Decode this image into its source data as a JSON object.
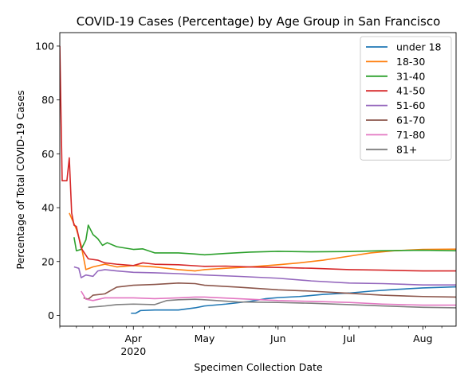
{
  "chart_data": {
    "type": "line",
    "title": "COVID-19 Cases (Percentage) by Age Group in San Francisco",
    "xlabel": "Specimen Collection Date",
    "ylabel": "Percentage of Total COVID-19 Cases",
    "x_range": [
      "2020-03-01",
      "2020-08-15"
    ],
    "ylim": [
      -4,
      105
    ],
    "y_ticks": [
      0,
      20,
      40,
      60,
      80,
      100
    ],
    "x_ticks": [
      {
        "date": "2020-04-01",
        "label": "Apr",
        "sublabel": "2020"
      },
      {
        "date": "2020-05-01",
        "label": "May",
        "sublabel": ""
      },
      {
        "date": "2020-06-01",
        "label": "Jun",
        "sublabel": ""
      },
      {
        "date": "2020-07-01",
        "label": "Jul",
        "sublabel": ""
      },
      {
        "date": "2020-08-01",
        "label": "Aug",
        "sublabel": ""
      }
    ],
    "grid": false,
    "legend_position": "top-right",
    "series": [
      {
        "name": "under 18",
        "color": "#1f77b4",
        "points": [
          [
            "2020-03-31",
            0.8
          ],
          [
            "2020-04-02",
            0.8
          ],
          [
            "2020-04-04",
            1.8
          ],
          [
            "2020-04-10",
            2.0
          ],
          [
            "2020-04-20",
            2.0
          ],
          [
            "2020-04-27",
            2.8
          ],
          [
            "2020-05-01",
            3.5
          ],
          [
            "2020-05-10",
            4.2
          ],
          [
            "2020-05-20",
            5.2
          ],
          [
            "2020-05-27",
            6.2
          ],
          [
            "2020-06-01",
            6.6
          ],
          [
            "2020-06-10",
            7.0
          ],
          [
            "2020-06-20",
            7.8
          ],
          [
            "2020-07-01",
            8.3
          ],
          [
            "2020-07-10",
            9.0
          ],
          [
            "2020-07-20",
            9.6
          ],
          [
            "2020-08-01",
            10.2
          ],
          [
            "2020-08-15",
            10.6
          ]
        ]
      },
      {
        "name": "18-30",
        "color": "#ff7f0e",
        "points": [
          [
            "2020-03-05",
            38.0
          ],
          [
            "2020-03-08",
            32.0
          ],
          [
            "2020-03-10",
            26.0
          ],
          [
            "2020-03-12",
            17.0
          ],
          [
            "2020-03-15",
            18.0
          ],
          [
            "2020-03-20",
            19.0
          ],
          [
            "2020-03-25",
            18.0
          ],
          [
            "2020-04-01",
            18.5
          ],
          [
            "2020-04-10",
            18.0
          ],
          [
            "2020-04-20",
            17.0
          ],
          [
            "2020-04-27",
            16.5
          ],
          [
            "2020-05-01",
            17.0
          ],
          [
            "2020-05-10",
            17.5
          ],
          [
            "2020-05-20",
            18.0
          ],
          [
            "2020-06-01",
            18.8
          ],
          [
            "2020-06-10",
            19.5
          ],
          [
            "2020-06-20",
            20.5
          ],
          [
            "2020-07-01",
            22.0
          ],
          [
            "2020-07-10",
            23.2
          ],
          [
            "2020-07-20",
            24.0
          ],
          [
            "2020-08-01",
            24.5
          ],
          [
            "2020-08-15",
            24.6
          ]
        ]
      },
      {
        "name": "31-40",
        "color": "#2ca02c",
        "points": [
          [
            "2020-03-07",
            29.0
          ],
          [
            "2020-03-08",
            24.0
          ],
          [
            "2020-03-10",
            24.5
          ],
          [
            "2020-03-12",
            28.0
          ],
          [
            "2020-03-13",
            33.5
          ],
          [
            "2020-03-15",
            30.0
          ],
          [
            "2020-03-17",
            28.5
          ],
          [
            "2020-03-19",
            26.0
          ],
          [
            "2020-03-21",
            27.0
          ],
          [
            "2020-03-25",
            25.5
          ],
          [
            "2020-04-01",
            24.5
          ],
          [
            "2020-04-05",
            24.7
          ],
          [
            "2020-04-10",
            23.2
          ],
          [
            "2020-04-20",
            23.2
          ],
          [
            "2020-04-27",
            22.8
          ],
          [
            "2020-05-01",
            22.5
          ],
          [
            "2020-05-10",
            23.0
          ],
          [
            "2020-05-20",
            23.5
          ],
          [
            "2020-06-01",
            23.8
          ],
          [
            "2020-06-15",
            23.6
          ],
          [
            "2020-07-01",
            23.7
          ],
          [
            "2020-07-15",
            24.0
          ],
          [
            "2020-08-01",
            24.2
          ],
          [
            "2020-08-15",
            24.0
          ]
        ]
      },
      {
        "name": "41-50",
        "color": "#d62728",
        "points": [
          [
            "2020-03-01",
            100.0
          ],
          [
            "2020-03-02",
            50.0
          ],
          [
            "2020-03-04",
            50.0
          ],
          [
            "2020-03-05",
            58.5
          ],
          [
            "2020-03-06",
            38.0
          ],
          [
            "2020-03-07",
            33.5
          ],
          [
            "2020-03-08",
            33.0
          ],
          [
            "2020-03-10",
            25.0
          ],
          [
            "2020-03-13",
            21.0
          ],
          [
            "2020-03-17",
            20.5
          ],
          [
            "2020-03-20",
            19.5
          ],
          [
            "2020-03-25",
            19.0
          ],
          [
            "2020-04-01",
            18.5
          ],
          [
            "2020-04-05",
            19.5
          ],
          [
            "2020-04-10",
            19.0
          ],
          [
            "2020-04-20",
            18.8
          ],
          [
            "2020-05-01",
            18.2
          ],
          [
            "2020-05-10",
            18.3
          ],
          [
            "2020-05-20",
            18.0
          ],
          [
            "2020-06-01",
            17.8
          ],
          [
            "2020-06-15",
            17.5
          ],
          [
            "2020-07-01",
            17.0
          ],
          [
            "2020-07-15",
            16.8
          ],
          [
            "2020-08-01",
            16.5
          ],
          [
            "2020-08-15",
            16.5
          ]
        ]
      },
      {
        "name": "51-60",
        "color": "#9467bd",
        "points": [
          [
            "2020-03-07",
            18.0
          ],
          [
            "2020-03-09",
            17.5
          ],
          [
            "2020-03-10",
            14.0
          ],
          [
            "2020-03-12",
            15.0
          ],
          [
            "2020-03-15",
            14.5
          ],
          [
            "2020-03-17",
            16.5
          ],
          [
            "2020-03-20",
            17.0
          ],
          [
            "2020-03-25",
            16.5
          ],
          [
            "2020-04-01",
            16.0
          ],
          [
            "2020-04-10",
            15.8
          ],
          [
            "2020-04-20",
            15.5
          ],
          [
            "2020-05-01",
            15.0
          ],
          [
            "2020-05-15",
            14.5
          ],
          [
            "2020-06-01",
            13.8
          ],
          [
            "2020-06-15",
            12.8
          ],
          [
            "2020-07-01",
            12.0
          ],
          [
            "2020-07-15",
            11.8
          ],
          [
            "2020-08-01",
            11.3
          ],
          [
            "2020-08-15",
            11.3
          ]
        ]
      },
      {
        "name": "61-70",
        "color": "#8c564b",
        "points": [
          [
            "2020-03-11",
            6.5
          ],
          [
            "2020-03-13",
            6.0
          ],
          [
            "2020-03-15",
            7.5
          ],
          [
            "2020-03-20",
            8.0
          ],
          [
            "2020-03-25",
            10.5
          ],
          [
            "2020-04-01",
            11.2
          ],
          [
            "2020-04-10",
            11.5
          ],
          [
            "2020-04-20",
            12.0
          ],
          [
            "2020-04-27",
            11.8
          ],
          [
            "2020-05-01",
            11.2
          ],
          [
            "2020-05-15",
            10.5
          ],
          [
            "2020-06-01",
            9.5
          ],
          [
            "2020-06-15",
            9.0
          ],
          [
            "2020-07-01",
            8.2
          ],
          [
            "2020-07-15",
            7.5
          ],
          [
            "2020-08-01",
            7.0
          ],
          [
            "2020-08-15",
            6.8
          ]
        ]
      },
      {
        "name": "71-80",
        "color": "#e377c2",
        "points": [
          [
            "2020-03-10",
            9.0
          ],
          [
            "2020-03-12",
            6.0
          ],
          [
            "2020-03-15",
            5.5
          ],
          [
            "2020-03-20",
            6.5
          ],
          [
            "2020-03-25",
            6.5
          ],
          [
            "2020-04-01",
            6.5
          ],
          [
            "2020-04-10",
            6.2
          ],
          [
            "2020-04-20",
            6.5
          ],
          [
            "2020-04-27",
            6.8
          ],
          [
            "2020-05-01",
            6.8
          ],
          [
            "2020-05-15",
            6.2
          ],
          [
            "2020-06-01",
            5.5
          ],
          [
            "2020-06-15",
            5.2
          ],
          [
            "2020-07-01",
            4.8
          ],
          [
            "2020-07-15",
            4.2
          ],
          [
            "2020-08-01",
            3.8
          ],
          [
            "2020-08-15",
            3.8
          ]
        ]
      },
      {
        "name": "81+",
        "color": "#7f7f7f",
        "points": [
          [
            "2020-03-13",
            3.0
          ],
          [
            "2020-03-16",
            3.2
          ],
          [
            "2020-03-20",
            3.5
          ],
          [
            "2020-03-25",
            4.0
          ],
          [
            "2020-04-01",
            4.2
          ],
          [
            "2020-04-10",
            4.0
          ],
          [
            "2020-04-15",
            5.5
          ],
          [
            "2020-04-20",
            5.8
          ],
          [
            "2020-04-27",
            6.0
          ],
          [
            "2020-05-01",
            5.8
          ],
          [
            "2020-05-15",
            5.0
          ],
          [
            "2020-06-01",
            4.8
          ],
          [
            "2020-06-15",
            4.5
          ],
          [
            "2020-07-01",
            4.0
          ],
          [
            "2020-07-15",
            3.5
          ],
          [
            "2020-08-01",
            3.0
          ],
          [
            "2020-08-15",
            2.8
          ]
        ]
      }
    ]
  }
}
